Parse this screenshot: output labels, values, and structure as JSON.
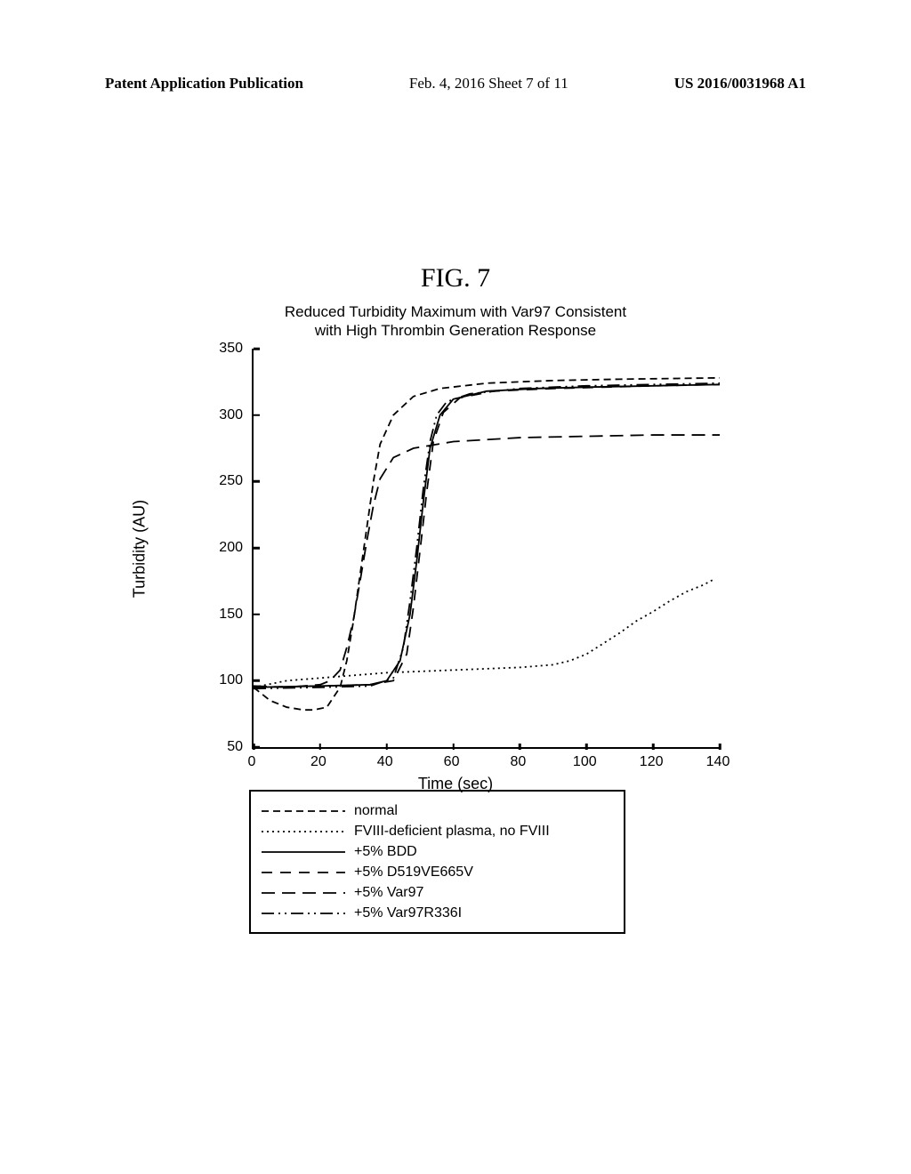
{
  "header": {
    "left": "Patent Application Publication",
    "center": "Feb. 4, 2016  Sheet 7 of 11",
    "right": "US 2016/0031968 A1"
  },
  "figure": {
    "label": "FIG. 7",
    "title_line1": "Reduced Turbidity Maximum with Var97 Consistent",
    "title_line2": "with High Thrombin Generation Response",
    "y_axis_label": "Turbidity (AU)",
    "x_axis_label": "Time (sec)",
    "type": "line",
    "xlim": [
      0,
      140
    ],
    "ylim": [
      50,
      350
    ],
    "xtick_step": 20,
    "ytick_step": 50,
    "xticks": [
      0,
      20,
      40,
      60,
      80,
      100,
      120,
      140
    ],
    "yticks": [
      50,
      100,
      150,
      200,
      250,
      300,
      350
    ],
    "background_color": "#ffffff",
    "axis_color": "#000000",
    "line_width": 1.8,
    "series": [
      {
        "id": "normal",
        "label": "normal",
        "dash": "8 5",
        "points": [
          [
            0,
            95
          ],
          [
            5,
            85
          ],
          [
            10,
            80
          ],
          [
            15,
            78
          ],
          [
            18,
            78
          ],
          [
            22,
            80
          ],
          [
            26,
            95
          ],
          [
            28,
            115
          ],
          [
            30,
            145
          ],
          [
            32,
            180
          ],
          [
            34,
            215
          ],
          [
            36,
            250
          ],
          [
            38,
            278
          ],
          [
            42,
            300
          ],
          [
            48,
            314
          ],
          [
            56,
            320
          ],
          [
            70,
            324
          ],
          [
            90,
            326
          ],
          [
            110,
            327
          ],
          [
            140,
            328
          ]
        ]
      },
      {
        "id": "fviii_deficient",
        "label": "FVIII-deficient plasma, no FVIII",
        "dash": "2 4",
        "points": [
          [
            0,
            95
          ],
          [
            10,
            100
          ],
          [
            20,
            102
          ],
          [
            30,
            104
          ],
          [
            40,
            106
          ],
          [
            50,
            107
          ],
          [
            60,
            108
          ],
          [
            70,
            109
          ],
          [
            80,
            110
          ],
          [
            90,
            112
          ],
          [
            95,
            115
          ],
          [
            100,
            120
          ],
          [
            105,
            128
          ],
          [
            110,
            136
          ],
          [
            115,
            145
          ],
          [
            120,
            152
          ],
          [
            125,
            160
          ],
          [
            130,
            167
          ],
          [
            135,
            172
          ],
          [
            138,
            176
          ]
        ]
      },
      {
        "id": "bdd",
        "label": "+5% BDD",
        "dash": "",
        "points": [
          [
            0,
            95
          ],
          [
            20,
            96
          ],
          [
            35,
            97
          ],
          [
            40,
            100
          ],
          [
            44,
            115
          ],
          [
            47,
            150
          ],
          [
            49,
            190
          ],
          [
            51,
            235
          ],
          [
            53,
            275
          ],
          [
            56,
            300
          ],
          [
            60,
            312
          ],
          [
            70,
            318
          ],
          [
            85,
            320
          ],
          [
            100,
            321
          ],
          [
            120,
            322
          ],
          [
            140,
            323
          ]
        ]
      },
      {
        "id": "d519v",
        "label": "+5% D519VE665V",
        "dash": "12 9",
        "points": [
          [
            0,
            95
          ],
          [
            20,
            96
          ],
          [
            35,
            97
          ],
          [
            42,
            100
          ],
          [
            46,
            120
          ],
          [
            48,
            155
          ],
          [
            50,
            198
          ],
          [
            52,
            242
          ],
          [
            54,
            280
          ],
          [
            57,
            302
          ],
          [
            62,
            313
          ],
          [
            72,
            318
          ],
          [
            90,
            320
          ],
          [
            120,
            322
          ],
          [
            140,
            323
          ]
        ]
      },
      {
        "id": "var97",
        "label": "+5% Var97",
        "dash": "15 8",
        "points": [
          [
            0,
            96
          ],
          [
            10,
            95
          ],
          [
            20,
            97
          ],
          [
            23,
            100
          ],
          [
            26,
            108
          ],
          [
            28,
            125
          ],
          [
            30,
            146
          ],
          [
            32,
            175
          ],
          [
            34,
            205
          ],
          [
            36,
            232
          ],
          [
            38,
            252
          ],
          [
            42,
            268
          ],
          [
            48,
            275
          ],
          [
            60,
            280
          ],
          [
            80,
            283
          ],
          [
            100,
            284
          ],
          [
            120,
            285
          ],
          [
            140,
            285
          ]
        ]
      },
      {
        "id": "var97r336i",
        "label": "+5% Var97R336I",
        "dash": "14 5 2 5 2 5",
        "points": [
          [
            0,
            94
          ],
          [
            20,
            95
          ],
          [
            35,
            96
          ],
          [
            42,
            102
          ],
          [
            45,
            125
          ],
          [
            47,
            160
          ],
          [
            49,
            200
          ],
          [
            51,
            245
          ],
          [
            53,
            280
          ],
          [
            55,
            300
          ],
          [
            58,
            310
          ],
          [
            65,
            316
          ],
          [
            80,
            320
          ],
          [
            100,
            322
          ],
          [
            120,
            323
          ],
          [
            140,
            324
          ]
        ]
      }
    ],
    "legend": [
      {
        "series": "normal",
        "display_thick": false
      },
      {
        "series": "fviii_deficient",
        "display_thick": false
      },
      {
        "series": "bdd",
        "display_thick": false
      },
      {
        "series": "d519v",
        "display_thick": false
      },
      {
        "series": "var97",
        "display_thick": false
      },
      {
        "series": "var97r336i",
        "display_thick": false
      }
    ]
  }
}
